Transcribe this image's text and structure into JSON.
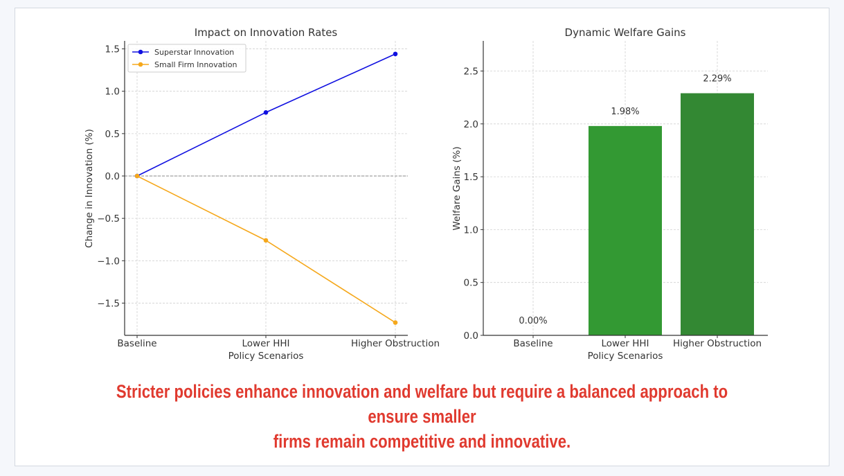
{
  "colors": {
    "superstar": "#1010e0",
    "small_firm": "#f5a81c",
    "bar_lower": "#339933",
    "bar_higher": "#338833",
    "caption": "#e03a2f"
  },
  "chart_data": [
    {
      "type": "line",
      "title": "Impact on Innovation Rates",
      "xlabel": "Policy Scenarios",
      "ylabel": "Change in Innovation (%)",
      "categories": [
        "Baseline",
        "Lower HHI",
        "Higher Obstruction"
      ],
      "series": [
        {
          "name": "Superstar Innovation",
          "values": [
            0.0,
            0.75,
            1.44
          ]
        },
        {
          "name": "Small Firm Innovation",
          "values": [
            0.0,
            -0.76,
            -1.73
          ]
        }
      ],
      "ylim": [
        -1.8,
        1.5
      ],
      "yticks": [
        "1.5",
        "1.0",
        "0.5",
        "0.0",
        "−0.5",
        "−1.0",
        "−1.5"
      ],
      "ytick_values": [
        1.5,
        1.0,
        0.5,
        0.0,
        -0.5,
        -1.0,
        -1.5
      ],
      "grid": true,
      "zero_line": true,
      "legend": "top-left"
    },
    {
      "type": "bar",
      "title": "Dynamic Welfare Gains",
      "xlabel": "Policy Scenarios",
      "ylabel": "Welfare Gains (%)",
      "categories": [
        "Baseline",
        "Lower HHI",
        "Higher Obstruction"
      ],
      "values": [
        0.0,
        1.98,
        2.29
      ],
      "data_labels": [
        "0.00%",
        "1.98%",
        "2.29%"
      ],
      "ylim": [
        0,
        2.75
      ],
      "yticks": [
        "0.0",
        "0.5",
        "1.0",
        "1.5",
        "2.0",
        "2.5"
      ],
      "ytick_values": [
        0.0,
        0.5,
        1.0,
        1.5,
        2.0,
        2.5
      ],
      "grid": true
    }
  ],
  "caption": {
    "line1": "Stricter policies enhance innovation and welfare but require a balanced approach to ensure smaller",
    "line2": "firms remain competitive and innovative."
  }
}
